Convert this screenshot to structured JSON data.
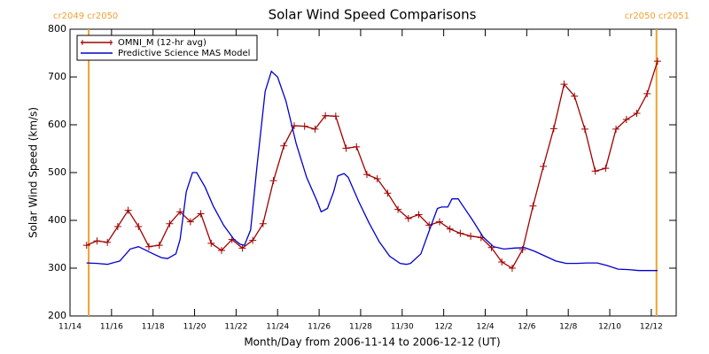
{
  "chart_data": {
    "type": "line",
    "title": "Solar Wind Speed Comparisons",
    "x_label": "Month/Day from 2006-11-14 to 2006-12-12 (UT)",
    "y_label": "Solar Wind Speed (km/s)",
    "xlim": [
      0,
      29.2
    ],
    "xticks": [
      {
        "value": 0,
        "label": "11/14"
      },
      {
        "value": 2,
        "label": "11/16"
      },
      {
        "value": 4,
        "label": "11/18"
      },
      {
        "value": 6,
        "label": "11/20"
      },
      {
        "value": 8,
        "label": "11/22"
      },
      {
        "value": 10,
        "label": "11/24"
      },
      {
        "value": 12,
        "label": "11/26"
      },
      {
        "value": 14,
        "label": "11/28"
      },
      {
        "value": 16,
        "label": "11/30"
      },
      {
        "value": 18,
        "label": "12/2"
      },
      {
        "value": 20,
        "label": "12/4"
      },
      {
        "value": 22,
        "label": "12/6"
      },
      {
        "value": 24,
        "label": "12/8"
      },
      {
        "value": 26,
        "label": "12/10"
      },
      {
        "value": 28,
        "label": "12/12"
      }
    ],
    "ylim": [
      200,
      800
    ],
    "yticks": [
      200,
      300,
      400,
      500,
      600,
      700,
      800
    ],
    "legend": "top-left",
    "markers": [
      {
        "x": 0.9,
        "label": "cr2049 cr2050",
        "color": "#f0a030"
      },
      {
        "x": 28.25,
        "label": "cr2050 cr2051",
        "color": "#f0a030"
      }
    ],
    "series": [
      {
        "name": "OMNI_M (12-hr avg)",
        "color": "#a00000",
        "marker": "+",
        "x": [
          0.8,
          1.3,
          1.8,
          2.3,
          2.8,
          3.3,
          3.8,
          4.3,
          4.8,
          5.3,
          5.8,
          6.3,
          6.8,
          7.3,
          7.8,
          8.3,
          8.8,
          9.3,
          9.8,
          10.3,
          10.8,
          11.3,
          11.8,
          12.3,
          12.8,
          13.3,
          13.8,
          14.3,
          14.8,
          15.3,
          15.8,
          16.3,
          16.8,
          17.3,
          17.8,
          18.3,
          18.8,
          19.3,
          19.8,
          20.3,
          20.8,
          21.3,
          21.8,
          22.3,
          22.8,
          23.3,
          23.8,
          24.3,
          24.8,
          25.3,
          25.8,
          26.3,
          26.8,
          27.3,
          27.8,
          28.3
        ],
        "values": [
          348,
          357,
          354,
          387,
          421,
          387,
          345,
          348,
          393,
          418,
          397,
          414,
          352,
          337,
          360,
          342,
          358,
          393,
          483,
          556,
          598,
          597,
          591,
          619,
          618,
          551,
          554,
          496,
          487,
          457,
          423,
          404,
          412,
          390,
          397,
          382,
          373,
          367,
          364,
          343,
          313,
          300,
          339,
          430,
          513,
          592,
          685,
          660,
          591,
          503,
          509,
          591,
          611,
          624,
          665,
          733
        ]
      },
      {
        "name": "Predictive Science MAS Model",
        "color": "#0000cc",
        "marker": "none",
        "x": [
          0.8,
          1.3,
          1.8,
          2.4,
          2.9,
          3.3,
          3.9,
          4.4,
          4.7,
          5.1,
          5.3,
          5.6,
          5.9,
          6.1,
          6.5,
          6.9,
          7.4,
          7.9,
          8.2,
          8.4,
          8.7,
          9.0,
          9.4,
          9.7,
          10.0,
          10.4,
          10.9,
          11.4,
          11.9,
          12.1,
          12.4,
          12.7,
          12.9,
          13.2,
          13.4,
          13.9,
          14.4,
          14.9,
          15.4,
          15.9,
          16.2,
          16.4,
          16.9,
          17.4,
          17.7,
          17.9,
          18.2,
          18.4,
          18.7,
          18.9,
          19.4,
          19.9,
          20.4,
          20.9,
          21.4,
          21.9,
          22.4,
          22.9,
          23.4,
          23.9,
          24.4,
          24.9,
          25.4,
          25.9,
          26.4,
          26.9,
          27.4,
          28.0,
          28.3
        ],
        "values": [
          311,
          310,
          308,
          315,
          340,
          345,
          332,
          322,
          320,
          330,
          360,
          460,
          500,
          500,
          470,
          430,
          390,
          360,
          350,
          348,
          380,
          510,
          670,
          712,
          700,
          650,
          560,
          490,
          440,
          418,
          425,
          460,
          493,
          498,
          490,
          440,
          395,
          355,
          325,
          310,
          308,
          310,
          330,
          390,
          425,
          428,
          428,
          445,
          445,
          432,
          400,
          365,
          345,
          340,
          342,
          343,
          335,
          325,
          315,
          310,
          310,
          311,
          311,
          305,
          298,
          297,
          295,
          295,
          295
        ]
      }
    ]
  }
}
